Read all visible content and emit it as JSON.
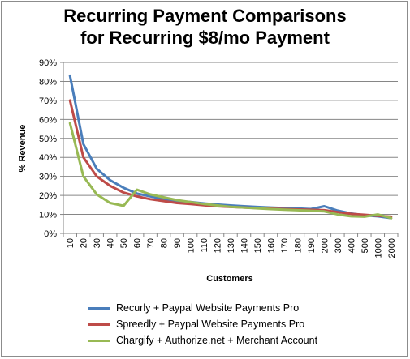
{
  "chart_data": {
    "type": "line",
    "title_line1": "Recurring Payment Comparisons",
    "title_line2": "for Recurring $8/mo Payment",
    "xlabel": "Customers",
    "ylabel": "% Revenue",
    "ylim": [
      0,
      0.9
    ],
    "yticks": [
      "0%",
      "10%",
      "20%",
      "30%",
      "40%",
      "50%",
      "60%",
      "70%",
      "80%",
      "90%"
    ],
    "x": [
      "10",
      "20",
      "30",
      "40",
      "50",
      "60",
      "70",
      "80",
      "90",
      "100",
      "110",
      "120",
      "130",
      "140",
      "150",
      "160",
      "170",
      "180",
      "190",
      "200",
      "300",
      "400",
      "500",
      "1000",
      "2000"
    ],
    "grid": "horizontal",
    "legend_position": "bottom",
    "series": [
      {
        "name": "Recurly + Paypal Website Payments Pro",
        "color": "#4a7ebb",
        "values": [
          0.83,
          0.47,
          0.34,
          0.28,
          0.24,
          0.21,
          0.195,
          0.18,
          0.17,
          0.165,
          0.158,
          0.152,
          0.147,
          0.143,
          0.139,
          0.136,
          0.133,
          0.131,
          0.128,
          0.143,
          0.12,
          0.105,
          0.095,
          0.09,
          0.08
        ]
      },
      {
        "name": "Spreedly + Paypal Website Payments Pro",
        "color": "#be4b48",
        "values": [
          0.7,
          0.4,
          0.3,
          0.25,
          0.215,
          0.195,
          0.18,
          0.17,
          0.16,
          0.155,
          0.148,
          0.143,
          0.139,
          0.136,
          0.133,
          0.13,
          0.128,
          0.126,
          0.124,
          0.122,
          0.112,
          0.103,
          0.098,
          0.093,
          0.088
        ]
      },
      {
        "name": "Chargify + Authorize.net + Merchant Account",
        "color": "#98b954",
        "values": [
          0.58,
          0.3,
          0.205,
          0.16,
          0.145,
          0.23,
          0.205,
          0.19,
          0.175,
          0.165,
          0.155,
          0.147,
          0.14,
          0.136,
          0.132,
          0.128,
          0.125,
          0.122,
          0.119,
          0.116,
          0.1,
          0.09,
          0.088,
          0.1,
          0.08
        ]
      }
    ]
  }
}
